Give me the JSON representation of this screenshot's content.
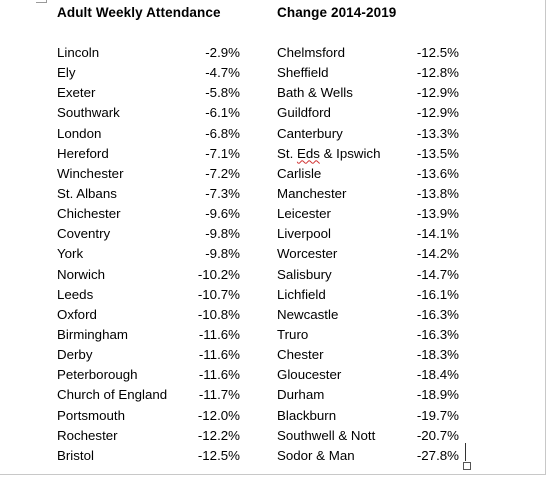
{
  "titles": {
    "left": "Adult Weekly Attendance",
    "right": "Change 2014-2019"
  },
  "left_rows": [
    {
      "name": "Lincoln",
      "value": "-2.9%"
    },
    {
      "name": "Ely",
      "value": "-4.7%"
    },
    {
      "name": "Exeter",
      "value": "-5.8%"
    },
    {
      "name": "Southwark",
      "value": "-6.1%"
    },
    {
      "name": "London",
      "value": "-6.8%"
    },
    {
      "name": "Hereford",
      "value": "-7.1%"
    },
    {
      "name": "Winchester",
      "value": "-7.2%"
    },
    {
      "name": "St. Albans",
      "value": "-7.3%"
    },
    {
      "name": "Chichester",
      "value": "-9.6%"
    },
    {
      "name": "Coventry",
      "value": "-9.8%"
    },
    {
      "name": "York",
      "value": "-9.8%"
    },
    {
      "name": "Norwich",
      "value": "-10.2%"
    },
    {
      "name": "Leeds",
      "value": "-10.7%"
    },
    {
      "name": "Oxford",
      "value": "-10.8%"
    },
    {
      "name": "Birmingham",
      "value": "-11.6%"
    },
    {
      "name": "Derby",
      "value": "-11.6%"
    },
    {
      "name": "Peterborough",
      "value": "-11.6%"
    },
    {
      "name": "Church of England",
      "value": "-11.7%"
    },
    {
      "name": "Portsmouth",
      "value": "-12.0%"
    },
    {
      "name": "Rochester",
      "value": "-12.2%"
    },
    {
      "name": "Bristol",
      "value": "-12.5%"
    }
  ],
  "right_rows": [
    {
      "name": "Chelmsford",
      "value": "-12.5%"
    },
    {
      "name": "Sheffield",
      "value": "-12.8%"
    },
    {
      "name": "Bath & Wells",
      "value": "-12.9%"
    },
    {
      "name": "Guildford",
      "value": "-12.9%"
    },
    {
      "name": "Canterbury",
      "value": "-13.3%"
    },
    {
      "name": "St. Eds & Ipswich",
      "value": "-13.5%"
    },
    {
      "name": "Carlisle",
      "value": "-13.6%"
    },
    {
      "name": "Manchester",
      "value": "-13.8%"
    },
    {
      "name": "Leicester",
      "value": "-13.9%"
    },
    {
      "name": "Liverpool",
      "value": "-14.1%"
    },
    {
      "name": "Worcester",
      "value": "-14.2%"
    },
    {
      "name": "Salisbury",
      "value": "-14.7%"
    },
    {
      "name": "Lichfield",
      "value": "-16.1%"
    },
    {
      "name": "Newcastle",
      "value": "-16.3%"
    },
    {
      "name": "Truro",
      "value": "-16.3%"
    },
    {
      "name": "Chester",
      "value": "-18.3%"
    },
    {
      "name": "Gloucester",
      "value": "-18.4%"
    },
    {
      "name": "Durham",
      "value": "-18.9%"
    },
    {
      "name": "Blackburn",
      "value": "-19.7%"
    },
    {
      "name": "Southwell & Nott",
      "value": "-20.7%"
    },
    {
      "name": "Sodor & Man",
      "value": "-27.8%"
    }
  ]
}
